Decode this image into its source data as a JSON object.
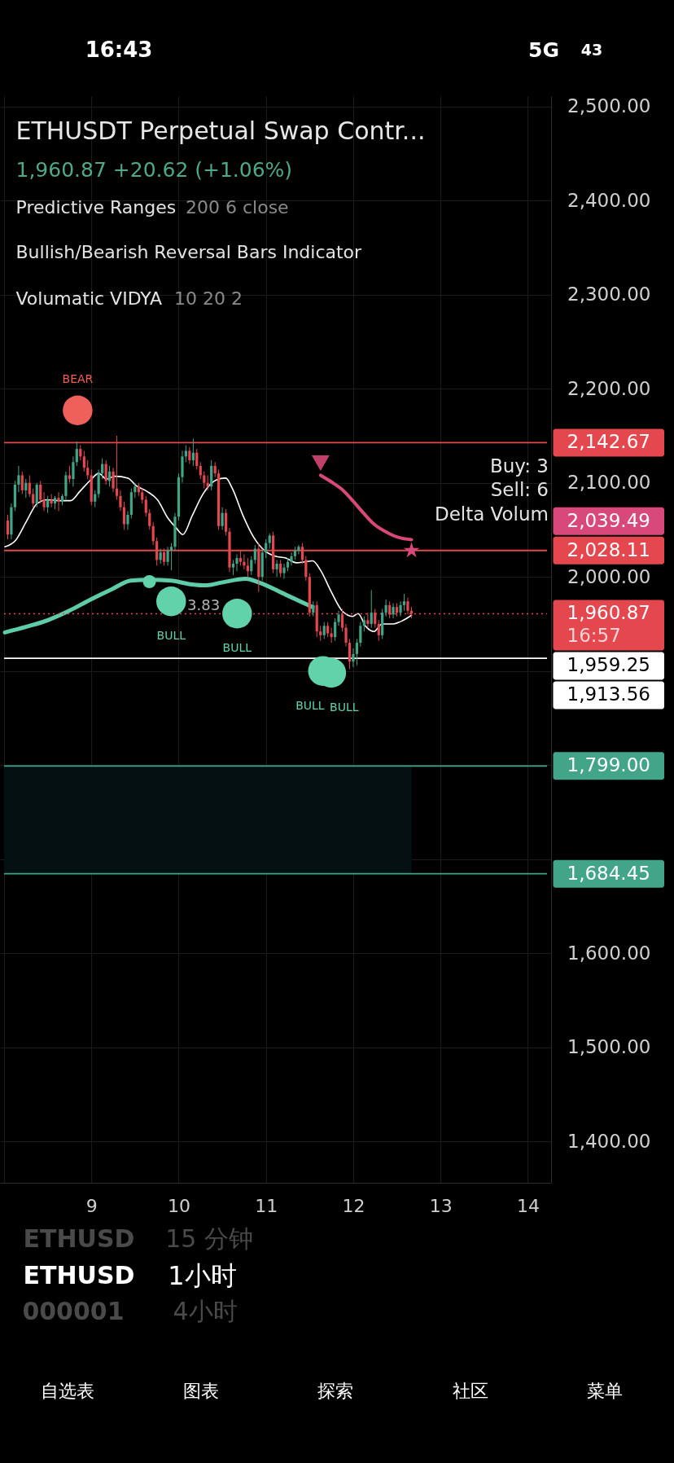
{
  "chart_data": {
    "type": "candlestick",
    "title": "ETHUSDT Perpetual Swap Contr...",
    "subtitle": "1,960.87 +20.62 (+1.06%)",
    "xlim": [
      8,
      14.22
    ],
    "ylim": [
      1356,
      2511
    ],
    "xticks": [
      {
        "value": 8,
        "label": null
      },
      9,
      10,
      11,
      12,
      13,
      14
    ],
    "yticks": [
      {
        "value": 1400,
        "label": "1,400.00"
      },
      {
        "value": 1500,
        "label": "1,500.00"
      },
      {
        "value": 1600,
        "label": "1,600.00"
      },
      {
        "value": 1700,
        "label": null
      },
      {
        "value": 1800,
        "label": null
      },
      {
        "value": 1900,
        "label": null
      },
      {
        "value": 2000,
        "label": "2,000.00"
      },
      {
        "value": 2100,
        "label": "2,100.00"
      },
      {
        "value": 2200,
        "label": "2,200.00"
      },
      {
        "value": 2300,
        "label": "2,300.00"
      },
      {
        "value": 2400,
        "label": "2,400.00"
      },
      {
        "value": 2500,
        "label": "2,500.00"
      }
    ],
    "grid": true,
    "series": [
      {
        "x": [
          8.042,
          8.083,
          8.125,
          8.167,
          8.208,
          8.25,
          8.292,
          8.333,
          8.375,
          8.417,
          8.458,
          8.5,
          8.542,
          8.583,
          8.625,
          8.667,
          8.708,
          8.75,
          8.792,
          8.833,
          8.875,
          8.917,
          8.958,
          9,
          9.042,
          9.083,
          9.125,
          9.167,
          9.208,
          9.25,
          9.292,
          9.333,
          9.375,
          9.417,
          9.458,
          9.5,
          9.542,
          9.583,
          9.625,
          9.667,
          9.708,
          9.75,
          9.792,
          9.833,
          9.875,
          9.917,
          9.958,
          10,
          10.042,
          10.083,
          10.125,
          10.167,
          10.208,
          10.25,
          10.292,
          10.333,
          10.375,
          10.417,
          10.458,
          10.5,
          10.542,
          10.583,
          10.625,
          10.667,
          10.708,
          10.75,
          10.792,
          10.833,
          10.875,
          10.917,
          10.958,
          11,
          11.042,
          11.083,
          11.125,
          11.167,
          11.208,
          11.25,
          11.292,
          11.333,
          11.375,
          11.417,
          11.458,
          11.5,
          11.542,
          11.583,
          11.625,
          11.667,
          11.708,
          11.75,
          11.792,
          11.833,
          11.875,
          11.917,
          11.958,
          12,
          12.042,
          12.083,
          12.125,
          12.167,
          12.208,
          12.25,
          12.292,
          12.333,
          12.375,
          12.417,
          12.458,
          12.5,
          12.542,
          12.583,
          12.625,
          12.667
        ],
        "ohlc": [
          [
            2060,
            2066,
            2040,
            2045
          ],
          [
            2045,
            2078,
            2040,
            2074
          ],
          [
            2074,
            2102,
            2070,
            2098
          ],
          [
            2098,
            2118,
            2090,
            2108
          ],
          [
            2108,
            2112,
            2088,
            2092
          ],
          [
            2092,
            2104,
            2084,
            2100
          ],
          [
            2100,
            2108,
            2085,
            2088
          ],
          [
            2088,
            2094,
            2074,
            2078
          ],
          [
            2078,
            2100,
            2074,
            2098
          ],
          [
            2098,
            2102,
            2078,
            2082
          ],
          [
            2082,
            2090,
            2070,
            2074
          ],
          [
            2074,
            2086,
            2068,
            2082
          ],
          [
            2082,
            2088,
            2074,
            2078
          ],
          [
            2078,
            2086,
            2072,
            2084
          ],
          [
            2084,
            2090,
            2070,
            2080
          ],
          [
            2080,
            2088,
            2076,
            2086
          ],
          [
            2086,
            2112,
            2082,
            2108
          ],
          [
            2108,
            2118,
            2100,
            2104
          ],
          [
            2104,
            2128,
            2096,
            2122
          ],
          [
            2122,
            2144,
            2118,
            2136
          ],
          [
            2136,
            2140,
            2124,
            2128
          ],
          [
            2128,
            2134,
            2112,
            2116
          ],
          [
            2116,
            2124,
            2104,
            2108
          ],
          [
            2108,
            2114,
            2076,
            2080
          ],
          [
            2080,
            2092,
            2074,
            2088
          ],
          [
            2088,
            2114,
            2084,
            2110
          ],
          [
            2110,
            2126,
            2104,
            2120
          ],
          [
            2120,
            2124,
            2098,
            2102
          ],
          [
            2102,
            2118,
            2096,
            2112
          ],
          [
            2112,
            2116,
            2090,
            2094
          ],
          [
            2094,
            2150,
            2082,
            2086
          ],
          [
            2086,
            2092,
            2070,
            2074
          ],
          [
            2074,
            2080,
            2050,
            2056
          ],
          [
            2056,
            2070,
            2050,
            2066
          ],
          [
            2066,
            2094,
            2062,
            2090
          ],
          [
            2090,
            2100,
            2084,
            2096
          ],
          [
            2096,
            2100,
            2086,
            2090
          ],
          [
            2090,
            2094,
            2078,
            2082
          ],
          [
            2082,
            2086,
            2064,
            2068
          ],
          [
            2068,
            2072,
            2050,
            2054
          ],
          [
            2054,
            2058,
            2034,
            2038
          ],
          [
            2038,
            2042,
            2012,
            2018
          ],
          [
            2018,
            2030,
            2014,
            2026
          ],
          [
            2026,
            2030,
            2012,
            2016
          ],
          [
            2016,
            2032,
            2012,
            2028
          ],
          [
            2028,
            2036,
            2007,
            2032
          ],
          [
            2032,
            2068,
            2028,
            2064
          ],
          [
            2064,
            2110,
            2060,
            2106
          ],
          [
            2106,
            2134,
            2100,
            2128
          ],
          [
            2128,
            2140,
            2122,
            2134
          ],
          [
            2134,
            2138,
            2120,
            2124
          ],
          [
            2124,
            2147,
            2118,
            2132
          ],
          [
            2132,
            2136,
            2114,
            2118
          ],
          [
            2118,
            2122,
            2104,
            2108
          ],
          [
            2108,
            2112,
            2094,
            2100
          ],
          [
            2100,
            2108,
            2092,
            2096
          ],
          [
            2096,
            2124,
            2092,
            2118
          ],
          [
            2118,
            2122,
            2106,
            2110
          ],
          [
            2110,
            2114,
            2050,
            2054
          ],
          [
            2054,
            2074,
            2050,
            2068
          ],
          [
            2068,
            2072,
            2044,
            2048
          ],
          [
            2048,
            2052,
            2005,
            2010
          ],
          [
            2010,
            2018,
            2002,
            2014
          ],
          [
            2014,
            2024,
            2006,
            2020
          ],
          [
            2020,
            2028,
            2012,
            2016
          ],
          [
            2016,
            2024,
            2008,
            2012
          ],
          [
            2012,
            2020,
            2000,
            2006
          ],
          [
            2006,
            2022,
            2002,
            2018
          ],
          [
            2018,
            2034,
            2014,
            2030
          ],
          [
            2030,
            2036,
            1984,
            2000
          ],
          [
            2000,
            2030,
            1996,
            2026
          ],
          [
            2026,
            2040,
            2020,
            2036
          ],
          [
            2036,
            2046,
            2030,
            2044
          ],
          [
            2044,
            2048,
            2004,
            2008
          ],
          [
            2008,
            2018,
            2000,
            2014
          ],
          [
            2014,
            2018,
            2000,
            2004
          ],
          [
            2004,
            2014,
            1998,
            2010
          ],
          [
            2010,
            2020,
            2006,
            2016
          ],
          [
            2016,
            2026,
            2012,
            2022
          ],
          [
            2022,
            2032,
            2018,
            2028
          ],
          [
            2028,
            2034,
            2024,
            2032
          ],
          [
            2032,
            2036,
            2014,
            2018
          ],
          [
            2018,
            2022,
            1996,
            2000
          ],
          [
            2000,
            2004,
            1958,
            1962
          ],
          [
            1962,
            1974,
            1958,
            1970
          ],
          [
            1970,
            1974,
            1936,
            1942
          ],
          [
            1942,
            1948,
            1932,
            1938
          ],
          [
            1938,
            1952,
            1934,
            1948
          ],
          [
            1948,
            1952,
            1936,
            1940
          ],
          [
            1940,
            1946,
            1930,
            1936
          ],
          [
            1936,
            1956,
            1932,
            1952
          ],
          [
            1952,
            1964,
            1948,
            1960
          ],
          [
            1960,
            1966,
            1942,
            1946
          ],
          [
            1946,
            1950,
            1926,
            1930
          ],
          [
            1930,
            1934,
            1902,
            1910
          ],
          [
            1910,
            1924,
            1904,
            1918
          ],
          [
            1918,
            1934,
            1906,
            1930
          ],
          [
            1930,
            1952,
            1926,
            1948
          ],
          [
            1948,
            1958,
            1942,
            1954
          ],
          [
            1954,
            1962,
            1946,
            1950
          ],
          [
            1950,
            1986,
            1946,
            1962
          ],
          [
            1962,
            1966,
            1946,
            1950
          ],
          [
            1950,
            1954,
            1932,
            1938
          ],
          [
            1938,
            1966,
            1934,
            1962
          ],
          [
            1962,
            1976,
            1958,
            1970
          ],
          [
            1970,
            1974,
            1956,
            1960
          ],
          [
            1960,
            1972,
            1956,
            1968
          ],
          [
            1968,
            1972,
            1958,
            1962
          ],
          [
            1962,
            1974,
            1958,
            1970
          ],
          [
            1970,
            1982,
            1964,
            1974
          ],
          [
            1974,
            1978,
            1960,
            1964
          ],
          [
            1964,
            1968,
            1956,
            1960.87
          ]
        ],
        "colors": [
          "#e5474f",
          "#3fa688",
          "#3fa688",
          "#3fa688",
          "#e5474f",
          "#3fa688",
          "#e5474f",
          "#e5474f",
          "#3fa688",
          "#e5474f",
          "#e5474f",
          "#3fa688",
          "#e5474f",
          "#3fa688",
          "#e5474f",
          "#3fa688",
          "#3fa688",
          "#e5474f",
          "#3fa688",
          "#3fa688",
          "#e5474f",
          "#e5474f",
          "#e5474f",
          "#e5474f",
          "#3fa688",
          "#3fa688",
          "#3fa688",
          "#e5474f",
          "#3fa688",
          "#e5474f",
          "#e5474f",
          "#e5474f",
          "#e5474f",
          "#3fa688",
          "#3fa688",
          "#3fa688",
          "#e5474f",
          "#e5474f",
          "#e5474f",
          "#e5474f",
          "#e5474f",
          "#e5474f",
          "#3fa688",
          "#e5474f",
          "#3fa688",
          "#3fa688",
          "#3fa688",
          "#3fa688",
          "#3fa688",
          "#3fa688",
          "#e5474f",
          "#3fa688",
          "#e5474f",
          "#e5474f",
          "#e5474f",
          "#e5474f",
          "#3fa688",
          "#e5474f",
          "#e5474f",
          "#3fa688",
          "#e5474f",
          "#e5474f",
          "#3fa688",
          "#3fa688",
          "#e5474f",
          "#e5474f",
          "#e5474f",
          "#3fa688",
          "#3fa688",
          "#e5474f",
          "#3fa688",
          "#3fa688",
          "#3fa688",
          "#e5474f",
          "#3fa688",
          "#e5474f",
          "#3fa688",
          "#3fa688",
          "#3fa688",
          "#3fa688",
          "#3fa688",
          "#e5474f",
          "#e5474f",
          "#e5474f",
          "#3fa688",
          "#e5474f",
          "#e5474f",
          "#3fa688",
          "#e5474f",
          "#e5474f",
          "#3fa688",
          "#3fa688",
          "#e5474f",
          "#e5474f",
          "#e5474f",
          "#3fa688",
          "#3fa688",
          "#3fa688",
          "#3fa688",
          "#e5474f",
          "#3fa688",
          "#e5474f",
          "#e5474f",
          "#3fa688",
          "#3fa688",
          "#e5474f",
          "#3fa688",
          "#e5474f",
          "#3fa688",
          "#3fa688",
          "#e5474f",
          "#e5474f"
        ]
      },
      {
        "type": "line",
        "color": "#ffffff",
        "x": [
          8.01,
          8.133,
          8.256,
          8.379,
          8.501,
          8.624,
          8.762,
          8.869,
          8.992,
          9.084,
          9.175,
          9.267,
          9.42,
          9.512,
          9.635,
          9.757,
          9.88,
          9.972,
          10.049,
          10.155,
          10.278,
          10.431,
          10.539,
          10.615,
          10.738,
          10.86,
          10.983,
          11.106,
          11.228,
          11.35,
          11.442,
          11.534,
          11.626,
          11.749,
          11.871,
          11.994,
          12.055,
          12.147,
          12.239,
          12.331,
          12.453,
          12.576,
          12.668
        ],
        "values": [
          2032,
          2039,
          2059,
          2078,
          2082,
          2081,
          2081,
          2091,
          2103,
          2110,
          2104,
          2107,
          2105,
          2097,
          2091,
          2082,
          2062,
          2052,
          2045,
          2065,
          2088,
          2103,
          2105,
          2094,
          2065,
          2042,
          2028,
          2022,
          2020,
          2015,
          2016,
          2017,
          2007,
          1984,
          1964,
          1958,
          1961,
          1947,
          1942,
          1950,
          1950,
          1954,
          1959.25
        ]
      },
      {
        "type": "line",
        "color": "#5ecba9",
        "x": [
          8.01,
          8.256,
          8.501,
          8.746,
          8.992,
          9.237,
          9.451,
          9.665,
          9.911,
          10.155,
          10.309,
          10.493,
          10.768,
          10.922,
          11.228,
          11.534
        ],
        "values": [
          1941,
          1947,
          1954,
          1964,
          1976,
          1987,
          1996,
          1997,
          1996,
          1992,
          1991,
          1994,
          1998,
          1994,
          1981,
          1968
        ]
      },
      {
        "type": "line",
        "color": "#d9487a",
        "x": [
          11.626,
          11.749,
          11.871,
          11.994,
          12.116,
          12.239,
          12.392,
          12.515,
          12.668
        ],
        "values": [
          2108,
          2101,
          2093,
          2081,
          2068,
          2056,
          2047,
          2042,
          2039.49
        ]
      },
      {
        "type": "scatter",
        "marker": "circle",
        "color": "#62d2ab",
        "x": [
          9.914,
          10.67,
          11.653,
          11.748
        ],
        "values": [
          1974,
          1961,
          1900,
          1898
        ]
      },
      {
        "type": "scatter",
        "marker": "circle",
        "color": "#f0605b",
        "x": [
          8.843
        ],
        "values": [
          2177
        ]
      },
      {
        "type": "scatter",
        "marker": "circle",
        "color": "#62d2ab",
        "x": [
          9.665
        ],
        "values": [
          1995
        ]
      },
      {
        "type": "scatter",
        "marker": "triangle",
        "color": "#c0406a",
        "x": [
          11.626
        ],
        "values": [
          2121
        ]
      },
      {
        "type": "scatter",
        "marker": "star",
        "color": "#d9487a",
        "x": [
          12.668
        ],
        "values": [
          2028
        ]
      }
    ],
    "bands": [
      {
        "axis": "y",
        "from": 1684.45,
        "to": 1799,
        "color": "#041012"
      }
    ],
    "ref_lines": [
      {
        "axis": "y",
        "value": 2142.67,
        "label": "2,142.67",
        "color": "#e5474f",
        "line_style": "solid"
      },
      {
        "axis": "y",
        "value": 2028.11,
        "label": "2,028.11",
        "color": "#e5474f",
        "line_style": "solid"
      },
      {
        "axis": "y",
        "value": 1960.87,
        "label": "1,960.87",
        "color": "#e5474f",
        "line_style": "dotted"
      },
      {
        "axis": "y",
        "value": 1913.56,
        "label": "1,913.56",
        "color": "#ffffff",
        "line_style": "solid"
      },
      {
        "axis": "y",
        "value": 1799,
        "label": "1,799.00",
        "color": "#42a589",
        "line_style": "solid"
      },
      {
        "axis": "y",
        "value": 1684.45,
        "label": "1,684.45",
        "color": "#42a589",
        "line_style": "solid"
      }
    ],
    "annotations": [
      "Predictive Ranges",
      "200 6 close",
      "Bullish/Bearish Reversal Bars Indicator",
      "Volumatic VIDYA",
      "10 20 2",
      {
        "text": "BEAR",
        "x": 8.843,
        "y": 2177
      },
      {
        "text": "BULL",
        "x": 9.914,
        "y": 1974
      },
      {
        "text": "BULL",
        "x": 10.67,
        "y": 1961
      },
      {
        "text": "BULL",
        "x": 11.653,
        "y": 1900
      },
      {
        "text": "BULL",
        "x": 11.748,
        "y": 1898
      },
      "3.83",
      "Buy: 3",
      "Sell: 6",
      "Delta Volum",
      "2,039.49",
      "1,959.25",
      "16:57",
      "16:43",
      "5G",
      "43",
      "ETHUSD",
      "15 分钟",
      "ETHUSD",
      "1小时",
      "000001",
      "4小时",
      "自选表",
      "图表",
      "探索",
      "社区",
      "菜单"
    ]
  }
}
